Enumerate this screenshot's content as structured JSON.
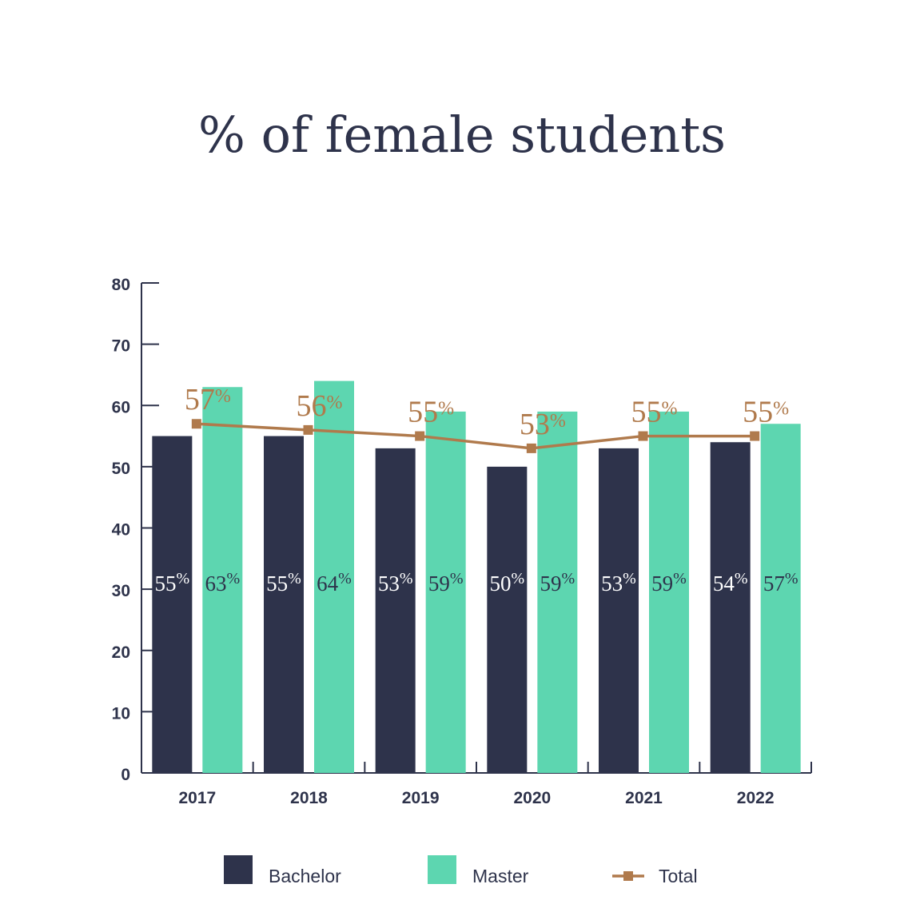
{
  "chart_data": {
    "type": "bar",
    "title": "% of female students",
    "categories": [
      "2017",
      "2018",
      "2019",
      "2020",
      "2021",
      "2022"
    ],
    "series": [
      {
        "name": "Bachelor",
        "kind": "bar",
        "color": "#2e334b",
        "values": [
          55,
          55,
          53,
          50,
          53,
          54
        ],
        "labels": [
          "55",
          "55",
          "53",
          "50",
          "53",
          "54"
        ]
      },
      {
        "name": "Master",
        "kind": "bar",
        "color": "#5dd6b0",
        "values": [
          63,
          64,
          59,
          59,
          59,
          57
        ],
        "labels": [
          "63",
          "64",
          "59",
          "59",
          "59",
          "57"
        ]
      },
      {
        "name": "Total",
        "kind": "line",
        "color": "#b07a4c",
        "values": [
          57,
          56,
          55,
          53,
          55,
          55
        ],
        "labels": [
          "57",
          "56",
          "55",
          "53",
          "55",
          "55"
        ]
      }
    ],
    "percent_sign": "%",
    "ylim": [
      0,
      80
    ],
    "yticks": [
      "0",
      "10",
      "20",
      "30",
      "40",
      "50",
      "60",
      "70",
      "80"
    ],
    "legend_position": "bottom",
    "grid": false,
    "axis_color": "#2e334b"
  }
}
